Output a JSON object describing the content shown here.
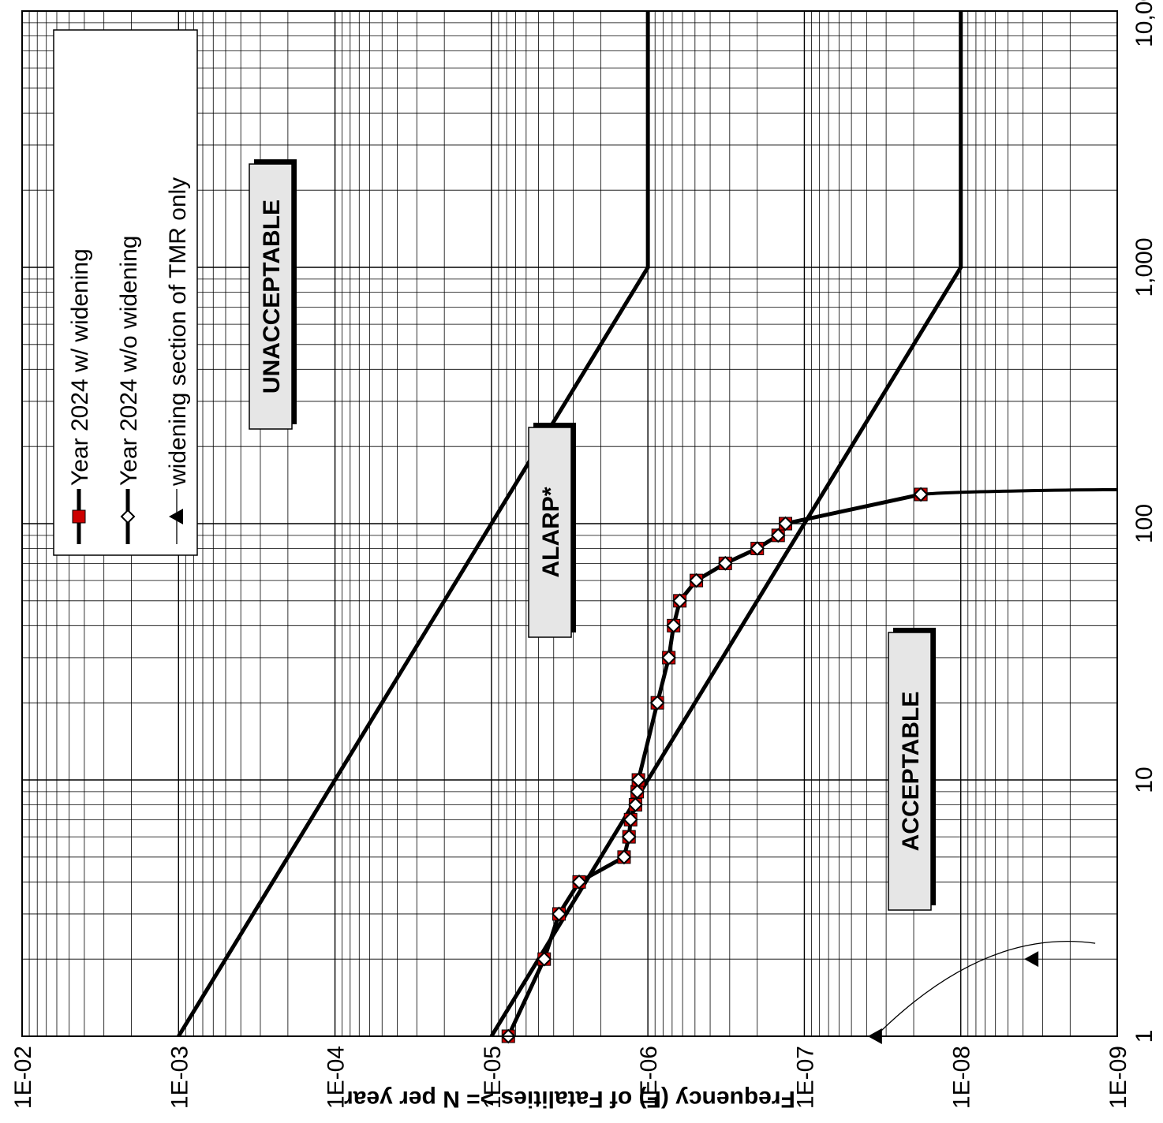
{
  "chart_data": {
    "type": "line",
    "xscale": "log",
    "yscale": "log",
    "xlim": [
      1,
      10000
    ],
    "ylim": [
      1e-09,
      0.01
    ],
    "grid": true,
    "ylabel": "Frequency (F) of Fatalities >= N per year",
    "xlabel": "",
    "x_ticks": [
      {
        "value": 1,
        "label": "1"
      },
      {
        "value": 10,
        "label": "10"
      },
      {
        "value": 100,
        "label": "100"
      },
      {
        "value": 1000,
        "label": "1,000"
      },
      {
        "value": 10000,
        "label": "10,000"
      }
    ],
    "y_ticks": [
      {
        "value": 0.01,
        "label": "1E-02"
      },
      {
        "value": 0.001,
        "label": "1E-03"
      },
      {
        "value": 0.0001,
        "label": "1E-04"
      },
      {
        "value": 1e-05,
        "label": "1E-05"
      },
      {
        "value": 1e-06,
        "label": "1E-06"
      },
      {
        "value": 1e-07,
        "label": "1E-07"
      },
      {
        "value": 1e-08,
        "label": "1E-08"
      },
      {
        "value": 1e-09,
        "label": "1E-09"
      }
    ],
    "criteria_lines": [
      {
        "x": [
          1,
          1000,
          10000
        ],
        "y": [
          0.001,
          1e-06,
          1e-06
        ]
      },
      {
        "x": [
          1,
          1000,
          10000
        ],
        "y": [
          1e-05,
          1e-08,
          1e-08
        ]
      }
    ],
    "series": [
      {
        "name": "Year 2024 w/ widening",
        "marker": "square",
        "color": "#000000",
        "marker_color": "#cc0000",
        "x": [
          1,
          2,
          3,
          4,
          5,
          6,
          7,
          8,
          9,
          10,
          20,
          30,
          40,
          50,
          60,
          70,
          80,
          90,
          100,
          130
        ],
        "y": [
          7.8e-06,
          4.6e-06,
          3.7e-06,
          2.75e-06,
          1.42e-06,
          1.32e-06,
          1.29e-06,
          1.2e-06,
          1.17e-06,
          1.15e-06,
          8.7e-07,
          7.35e-07,
          6.85e-07,
          6.25e-07,
          4.9e-07,
          3.2e-07,
          2e-07,
          1.47e-07,
          1.32e-07,
          1.8e-08
        ]
      },
      {
        "name": "Year 2024 w/o widening",
        "marker": "diamond",
        "color": "#000000",
        "marker_color": "#ffffff",
        "x": [
          1,
          2,
          3,
          4,
          5,
          6,
          7,
          8,
          9,
          10,
          20,
          30,
          40,
          50,
          60,
          70,
          80,
          90,
          100,
          130
        ],
        "y": [
          7.8e-06,
          4.6e-06,
          3.7e-06,
          2.75e-06,
          1.42e-06,
          1.32e-06,
          1.29e-06,
          1.2e-06,
          1.17e-06,
          1.15e-06,
          8.7e-07,
          7.35e-07,
          6.85e-07,
          6.25e-07,
          4.9e-07,
          3.2e-07,
          2e-07,
          1.47e-07,
          1.32e-07,
          1.8e-08
        ]
      },
      {
        "name": "widening section of TMR only",
        "marker": "triangle",
        "color": "#000000",
        "x": [
          1,
          2
        ],
        "y": [
          3.5e-08,
          3.5e-09
        ]
      }
    ],
    "regions": [
      {
        "label": "UNACCEPTABLE"
      },
      {
        "label": "ALARP*"
      },
      {
        "label": "ACCEPTABLE"
      }
    ]
  }
}
